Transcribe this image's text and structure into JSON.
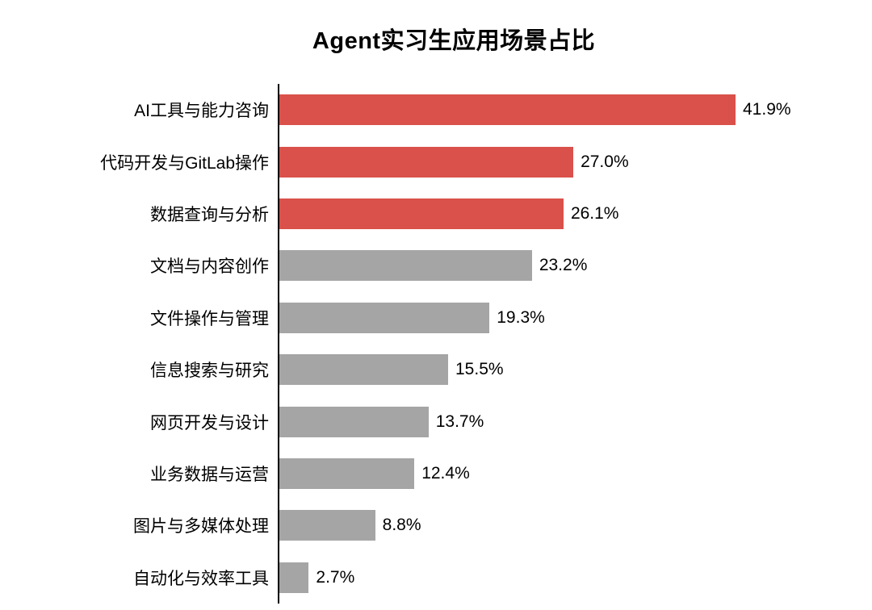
{
  "title": "Agent实习生应用场景占比",
  "chart_data": {
    "type": "bar",
    "orientation": "horizontal",
    "title": "Agent实习生应用场景占比",
    "categories": [
      "AI工具与能力咨询",
      "代码开发与GitLab操作",
      "数据查询与分析",
      "文档与内容创作",
      "文件操作与管理",
      "信息搜索与研究",
      "网页开发与设计",
      "业务数据与运营",
      "图片与多媒体处理",
      "自动化与效率工具"
    ],
    "values": [
      41.9,
      27.0,
      26.1,
      23.2,
      19.3,
      15.5,
      13.7,
      12.4,
      8.8,
      2.7
    ],
    "value_labels": [
      "41.9%",
      "27.0%",
      "26.1%",
      "23.2%",
      "19.3%",
      "15.5%",
      "13.7%",
      "12.4%",
      "8.8%",
      "2.7%"
    ],
    "bar_colors": [
      "#D9514A",
      "#D9514A",
      "#D9514A",
      "#A5A5A5",
      "#A5A5A5",
      "#A5A5A5",
      "#A5A5A5",
      "#A5A5A5",
      "#A5A5A5",
      "#A5A5A5"
    ],
    "highlight_color": "#D9514A",
    "default_color": "#A5A5A5",
    "axis_color": "#000000",
    "xlabel": "",
    "ylabel": "",
    "xlim": [
      0,
      45
    ],
    "grid": false,
    "legend_position": "none"
  }
}
